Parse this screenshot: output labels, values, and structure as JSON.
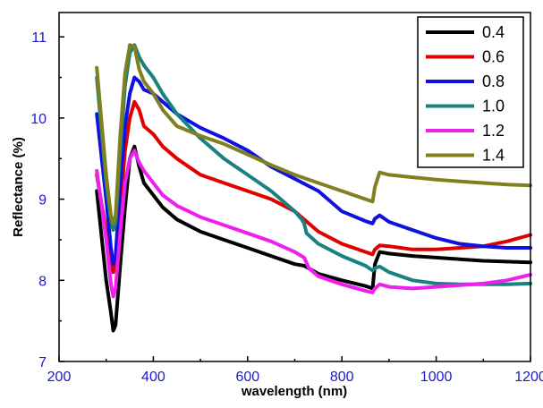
{
  "chart_data": {
    "type": "line",
    "title": "",
    "xlabel": "wavelength (nm)",
    "ylabel": "Reflectance (%)",
    "xlim": [
      200,
      1200
    ],
    "ylim": [
      7,
      11.3
    ],
    "x_ticks": [
      "200",
      "400",
      "600",
      "800",
      "1000",
      "1200"
    ],
    "y_ticks": [
      "7",
      "8",
      "9",
      "10",
      "11"
    ],
    "tick_color": "#1a1acc",
    "legend_position": "top-right",
    "series": [
      {
        "name": "0.4",
        "color": "#000000",
        "points": [
          [
            280,
            9.1
          ],
          [
            300,
            8.0
          ],
          [
            310,
            7.6
          ],
          [
            315,
            7.38
          ],
          [
            320,
            7.45
          ],
          [
            330,
            8.2
          ],
          [
            340,
            8.9
          ],
          [
            350,
            9.5
          ],
          [
            360,
            9.65
          ],
          [
            370,
            9.4
          ],
          [
            380,
            9.2
          ],
          [
            400,
            9.05
          ],
          [
            420,
            8.9
          ],
          [
            450,
            8.75
          ],
          [
            500,
            8.6
          ],
          [
            550,
            8.5
          ],
          [
            600,
            8.4
          ],
          [
            650,
            8.3
          ],
          [
            700,
            8.2
          ],
          [
            720,
            8.18
          ],
          [
            750,
            8.08
          ],
          [
            800,
            8.0
          ],
          [
            850,
            7.93
          ],
          [
            865,
            7.9
          ],
          [
            870,
            8.2
          ],
          [
            880,
            8.35
          ],
          [
            900,
            8.33
          ],
          [
            950,
            8.3
          ],
          [
            1000,
            8.28
          ],
          [
            1050,
            8.26
          ],
          [
            1100,
            8.24
          ],
          [
            1150,
            8.23
          ],
          [
            1200,
            8.22
          ]
        ]
      },
      {
        "name": "0.6",
        "color": "#e00000",
        "points": [
          [
            280,
            9.3
          ],
          [
            300,
            8.6
          ],
          [
            310,
            8.2
          ],
          [
            315,
            8.1
          ],
          [
            320,
            8.2
          ],
          [
            330,
            8.9
          ],
          [
            340,
            9.6
          ],
          [
            350,
            10.0
          ],
          [
            360,
            10.2
          ],
          [
            370,
            10.1
          ],
          [
            380,
            9.9
          ],
          [
            400,
            9.8
          ],
          [
            420,
            9.65
          ],
          [
            450,
            9.5
          ],
          [
            500,
            9.3
          ],
          [
            550,
            9.2
          ],
          [
            600,
            9.1
          ],
          [
            650,
            9.0
          ],
          [
            700,
            8.85
          ],
          [
            720,
            8.75
          ],
          [
            750,
            8.6
          ],
          [
            800,
            8.45
          ],
          [
            850,
            8.35
          ],
          [
            865,
            8.32
          ],
          [
            870,
            8.38
          ],
          [
            880,
            8.43
          ],
          [
            900,
            8.42
          ],
          [
            950,
            8.38
          ],
          [
            1000,
            8.38
          ],
          [
            1050,
            8.4
          ],
          [
            1100,
            8.42
          ],
          [
            1150,
            8.48
          ],
          [
            1200,
            8.56
          ]
        ]
      },
      {
        "name": "0.8",
        "color": "#1010e0",
        "points": [
          [
            280,
            10.05
          ],
          [
            300,
            9.0
          ],
          [
            310,
            8.4
          ],
          [
            315,
            8.2
          ],
          [
            320,
            8.3
          ],
          [
            330,
            9.2
          ],
          [
            340,
            9.9
          ],
          [
            350,
            10.3
          ],
          [
            360,
            10.5
          ],
          [
            370,
            10.45
          ],
          [
            380,
            10.35
          ],
          [
            400,
            10.3
          ],
          [
            420,
            10.2
          ],
          [
            450,
            10.05
          ],
          [
            500,
            9.88
          ],
          [
            550,
            9.75
          ],
          [
            600,
            9.6
          ],
          [
            650,
            9.4
          ],
          [
            700,
            9.25
          ],
          [
            750,
            9.1
          ],
          [
            780,
            8.95
          ],
          [
            800,
            8.85
          ],
          [
            850,
            8.73
          ],
          [
            865,
            8.7
          ],
          [
            870,
            8.76
          ],
          [
            880,
            8.8
          ],
          [
            900,
            8.72
          ],
          [
            950,
            8.62
          ],
          [
            1000,
            8.52
          ],
          [
            1050,
            8.45
          ],
          [
            1100,
            8.42
          ],
          [
            1150,
            8.4
          ],
          [
            1200,
            8.4
          ]
        ]
      },
      {
        "name": "1.0",
        "color": "#1a8080",
        "points": [
          [
            280,
            10.5
          ],
          [
            300,
            9.2
          ],
          [
            310,
            8.75
          ],
          [
            315,
            8.62
          ],
          [
            320,
            8.7
          ],
          [
            330,
            9.6
          ],
          [
            340,
            10.4
          ],
          [
            350,
            10.8
          ],
          [
            360,
            10.9
          ],
          [
            370,
            10.75
          ],
          [
            380,
            10.65
          ],
          [
            400,
            10.5
          ],
          [
            420,
            10.3
          ],
          [
            450,
            10.05
          ],
          [
            500,
            9.75
          ],
          [
            550,
            9.5
          ],
          [
            600,
            9.3
          ],
          [
            650,
            9.1
          ],
          [
            700,
            8.85
          ],
          [
            715,
            8.75
          ],
          [
            720,
            8.7
          ],
          [
            725,
            8.58
          ],
          [
            750,
            8.45
          ],
          [
            800,
            8.3
          ],
          [
            850,
            8.18
          ],
          [
            865,
            8.12
          ],
          [
            870,
            8.15
          ],
          [
            880,
            8.17
          ],
          [
            900,
            8.1
          ],
          [
            950,
            8.0
          ],
          [
            1000,
            7.96
          ],
          [
            1050,
            7.95
          ],
          [
            1100,
            7.95
          ],
          [
            1150,
            7.95
          ],
          [
            1200,
            7.96
          ]
        ]
      },
      {
        "name": "1.2",
        "color": "#ee20ee",
        "points": [
          [
            280,
            9.35
          ],
          [
            300,
            8.5
          ],
          [
            310,
            7.95
          ],
          [
            315,
            7.8
          ],
          [
            320,
            7.9
          ],
          [
            330,
            8.6
          ],
          [
            340,
            9.2
          ],
          [
            350,
            9.5
          ],
          [
            360,
            9.6
          ],
          [
            370,
            9.45
          ],
          [
            380,
            9.35
          ],
          [
            400,
            9.2
          ],
          [
            420,
            9.05
          ],
          [
            450,
            8.92
          ],
          [
            500,
            8.78
          ],
          [
            550,
            8.68
          ],
          [
            600,
            8.58
          ],
          [
            650,
            8.48
          ],
          [
            700,
            8.35
          ],
          [
            720,
            8.28
          ],
          [
            730,
            8.15
          ],
          [
            750,
            8.05
          ],
          [
            800,
            7.95
          ],
          [
            850,
            7.87
          ],
          [
            865,
            7.85
          ],
          [
            870,
            7.9
          ],
          [
            880,
            7.95
          ],
          [
            900,
            7.92
          ],
          [
            950,
            7.9
          ],
          [
            1000,
            7.92
          ],
          [
            1050,
            7.94
          ],
          [
            1100,
            7.96
          ],
          [
            1150,
            8.0
          ],
          [
            1200,
            8.07
          ]
        ]
      },
      {
        "name": "1.4",
        "color": "#808020",
        "points": [
          [
            280,
            10.62
          ],
          [
            300,
            9.3
          ],
          [
            310,
            8.8
          ],
          [
            315,
            8.7
          ],
          [
            320,
            8.8
          ],
          [
            330,
            9.8
          ],
          [
            340,
            10.55
          ],
          [
            350,
            10.9
          ],
          [
            360,
            10.88
          ],
          [
            370,
            10.6
          ],
          [
            380,
            10.45
          ],
          [
            400,
            10.3
          ],
          [
            420,
            10.1
          ],
          [
            450,
            9.9
          ],
          [
            500,
            9.78
          ],
          [
            550,
            9.68
          ],
          [
            600,
            9.55
          ],
          [
            650,
            9.42
          ],
          [
            700,
            9.3
          ],
          [
            750,
            9.2
          ],
          [
            800,
            9.1
          ],
          [
            850,
            9.0
          ],
          [
            865,
            8.97
          ],
          [
            870,
            9.15
          ],
          [
            880,
            9.33
          ],
          [
            900,
            9.3
          ],
          [
            950,
            9.27
          ],
          [
            1000,
            9.24
          ],
          [
            1050,
            9.22
          ],
          [
            1100,
            9.2
          ],
          [
            1150,
            9.18
          ],
          [
            1200,
            9.17
          ]
        ]
      }
    ]
  }
}
